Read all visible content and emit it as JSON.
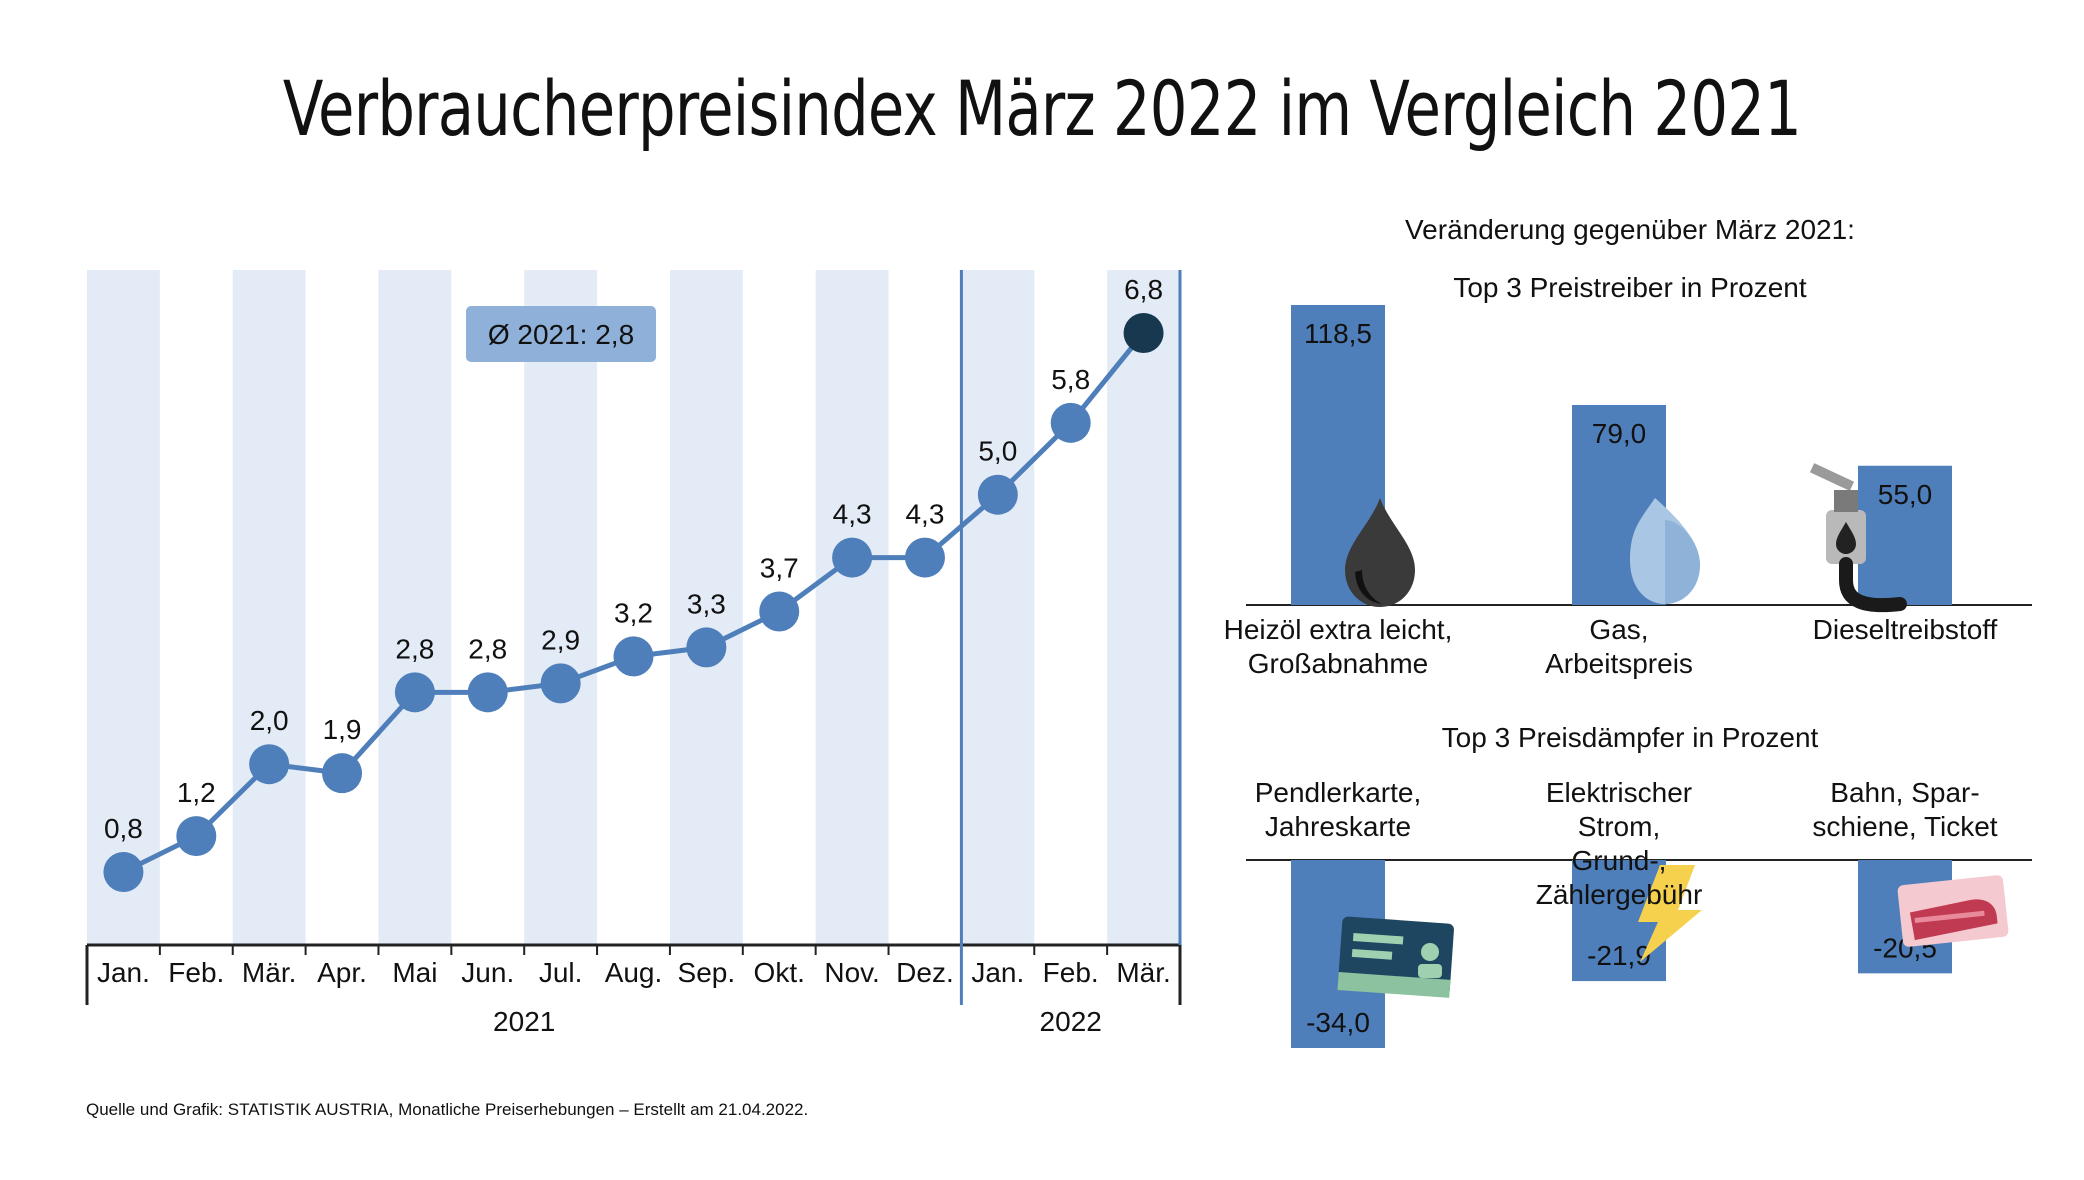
{
  "title": "Verbraucherpreisindex März 2022 im Vergleich 2021",
  "source": "Quelle und Grafik: STATISTIK AUSTRIA, Monatliche Preiserhebungen – Erstellt am 21.04.2022.",
  "chart_data": [
    {
      "type": "line",
      "categories": [
        "Jan.",
        "Feb.",
        "Mär.",
        "Apr.",
        "Mai",
        "Jun.",
        "Jul.",
        "Aug.",
        "Sep.",
        "Okt.",
        "Nov.",
        "Dez.",
        "Jan.",
        "Feb.",
        "Mär."
      ],
      "value_labels": [
        "0,8",
        "1,2",
        "2,0",
        "1,9",
        "2,8",
        "2,8",
        "2,9",
        "3,2",
        "3,3",
        "3,7",
        "4,3",
        "4,3",
        "5,0",
        "5,8",
        "6,8"
      ],
      "values": [
        0.8,
        1.2,
        2.0,
        1.9,
        2.8,
        2.8,
        2.9,
        3.2,
        3.3,
        3.7,
        4.3,
        4.3,
        5.0,
        5.8,
        6.8
      ],
      "year_groups": [
        {
          "label": "2021",
          "start": 0,
          "end": 11
        },
        {
          "label": "2022",
          "start": 12,
          "end": 14
        }
      ],
      "average_label": "Ø 2021: 2,8",
      "ylim": [
        0,
        7.6
      ],
      "colors": {
        "line": "#4f7fba",
        "point": "#4f7fba",
        "last_point": "#17384f",
        "band": "#e2ebf6",
        "avg_box": "#8fb0d8"
      }
    },
    {
      "type": "bar",
      "heading": "Veränderung gegenüber März 2021:",
      "title": "Top 3 Preistreiber in Prozent",
      "categories": [
        "Heizöl extra leicht, Großabnahme",
        "Gas, Arbeitspreis",
        "Dieseltreibstoff"
      ],
      "category_lines": [
        [
          "Heizöl extra leicht,",
          "Großabnahme"
        ],
        [
          "Gas,",
          "Arbeitspreis"
        ],
        [
          "Dieseltreibstoff"
        ]
      ],
      "value_labels": [
        "118,5",
        "79,0",
        "55,0"
      ],
      "values": [
        118.5,
        79.0,
        55.0
      ],
      "icons": [
        "oil-drop-icon",
        "gas-flame-icon",
        "fuel-nozzle-icon"
      ],
      "color": "#4f7fba"
    },
    {
      "type": "bar",
      "title": "Top 3 Preisdämpfer in Prozent",
      "categories": [
        "Pendlerkarte, Jahreskarte",
        "Elektrischer Strom, Grund-, Zählergebühr",
        "Bahn, Sparschiene, Ticket"
      ],
      "category_lines": [
        [
          "Pendlerkarte,",
          "Jahreskarte"
        ],
        [
          "Elektrischer Strom,",
          "Grund-, Zählergebühr"
        ],
        [
          "Bahn, Spar-",
          "schiene, Ticket"
        ]
      ],
      "value_labels": [
        "-34,0",
        "-21,9",
        "-20,5"
      ],
      "values": [
        -34.0,
        -21.9,
        -20.5
      ],
      "icons": [
        "id-card-icon",
        "lightning-icon",
        "train-ticket-icon"
      ],
      "color": "#4f7fba"
    }
  ]
}
